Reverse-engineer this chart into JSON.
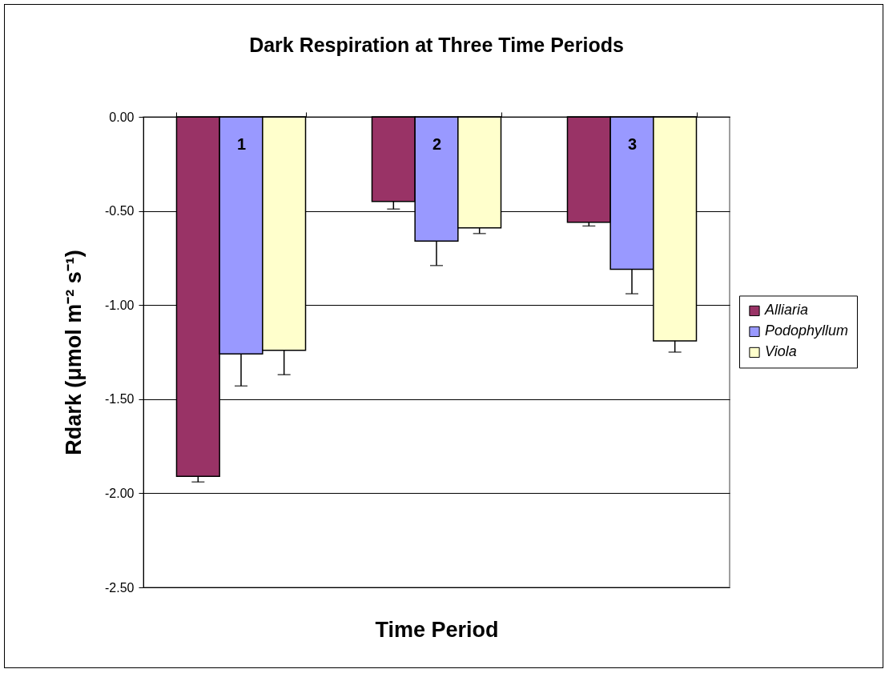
{
  "chart_data": {
    "type": "bar",
    "title": "Dark Respiration at Three Time Periods",
    "xlabel": "Time Period",
    "ylabel": "Rdark (μmol m⁻² s⁻¹)",
    "categories": [
      "1",
      "2",
      "3"
    ],
    "series": [
      {
        "name": "Alliaria",
        "color": "#993366",
        "values": [
          -1.91,
          -0.45,
          -0.56
        ],
        "errors": [
          [
            -1.94,
            -1.91
          ],
          [
            -0.49,
            -0.45
          ],
          [
            -0.58,
            -0.56
          ]
        ]
      },
      {
        "name": "Podophyllum",
        "color": "#9999ff",
        "values": [
          -1.26,
          -0.66,
          -0.81
        ],
        "errors": [
          [
            -1.43,
            -1.26
          ],
          [
            -0.79,
            -0.66
          ],
          [
            -0.94,
            -0.81
          ]
        ]
      },
      {
        "name": "Viola",
        "color": "#ffffcc",
        "values": [
          -1.24,
          -0.59,
          -1.19
        ],
        "errors": [
          [
            -1.37,
            -1.24
          ],
          [
            -0.62,
            -0.59
          ],
          [
            -1.25,
            -1.19
          ]
        ]
      }
    ],
    "ylim": [
      -2.5,
      0
    ],
    "yticks": [
      {
        "value": -2.5,
        "label": "-2.50"
      },
      {
        "value": -2,
        "label": "-2.00"
      },
      {
        "value": -1.5,
        "label": "-1.50"
      },
      {
        "value": -1,
        "label": "-1.00"
      },
      {
        "value": -0.5,
        "label": "-0.50"
      },
      {
        "value": 0,
        "label": "0.00"
      }
    ],
    "grid": "y",
    "legend": "right"
  }
}
